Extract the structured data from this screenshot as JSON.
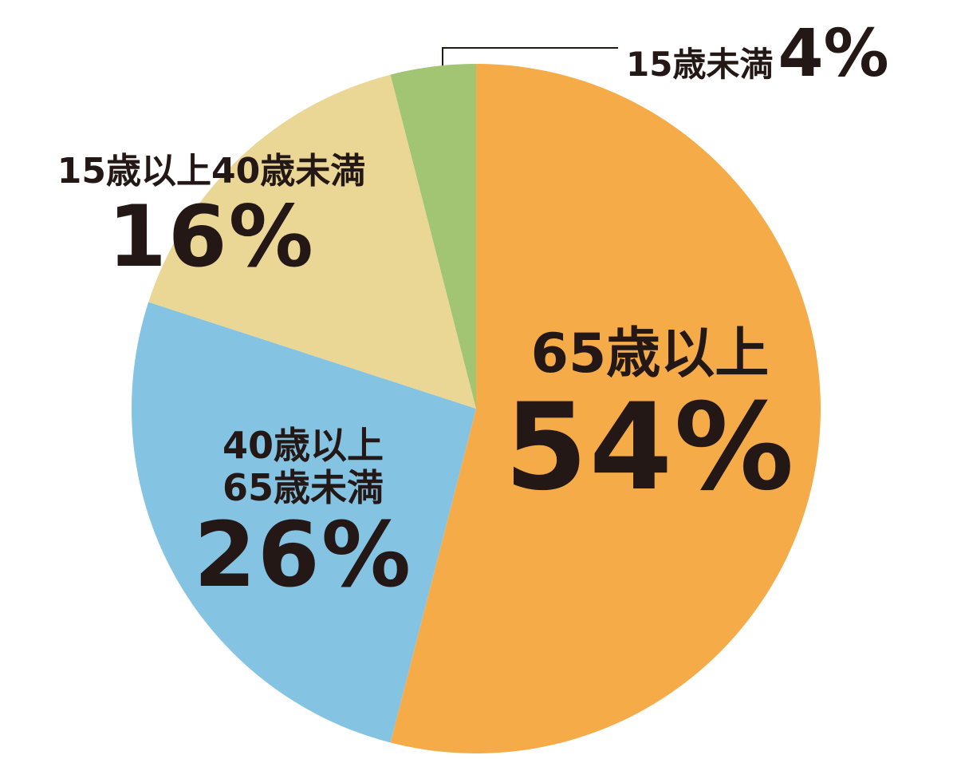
{
  "chart_data": {
    "type": "pie",
    "categories": [
      "65歳以上",
      "40歳以上\n65歳未満",
      "15歳以上40歳未満",
      "15歳未満"
    ],
    "values": [
      54,
      26,
      16,
      4
    ],
    "value_labels": [
      "54%",
      "26%",
      "16%",
      "4%"
    ],
    "colors": [
      "#f5ab48",
      "#85c3e3",
      "#ebd795",
      "#a2c574"
    ]
  }
}
